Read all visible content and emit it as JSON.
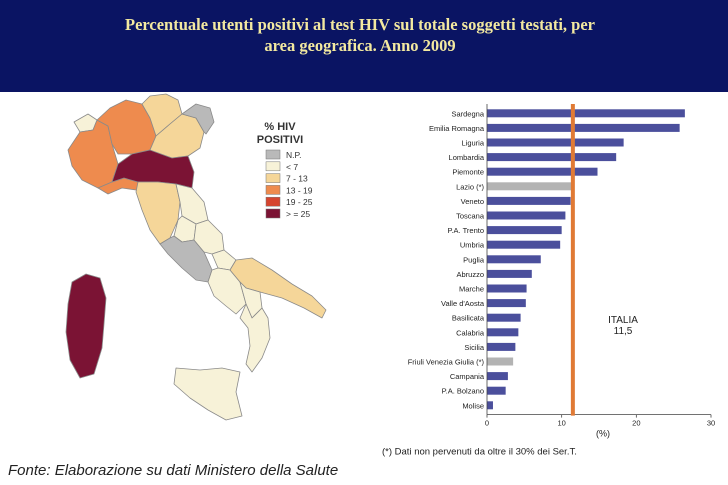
{
  "header": {
    "title_line1": "Percentuale utenti positivi al test HIV sul totale soggetti testati, per",
    "title_line2": "area geografica. Anno 2009"
  },
  "legend": {
    "title_line1": "% HIV",
    "title_line2": "POSITIVI",
    "items": [
      {
        "label": "N.P.",
        "color": "#b9b9b9"
      },
      {
        "label": "< 7",
        "color": "#f7f2d8"
      },
      {
        "label": "7 - 13",
        "color": "#f5d699"
      },
      {
        "label": "13 - 19",
        "color": "#ee8b4e"
      },
      {
        "label": "19 - 25",
        "color": "#d5452f"
      },
      {
        "label": "> = 25",
        "color": "#7b1334"
      }
    ]
  },
  "chart_data": {
    "type": "bar",
    "orientation": "horizontal",
    "categories": [
      "Sardegna",
      "Emilia Romagna",
      "Liguria",
      "Lombardia",
      "Piemonte",
      "Lazio (*)",
      "Veneto",
      "Toscana",
      "P.A. Trento",
      "Umbria",
      "Puglia",
      "Abruzzo",
      "Marche",
      "Valle d'Aosta",
      "Basilicata",
      "Calabria",
      "Sicilia",
      "Friuli Venezia Giulia (*)",
      "Campania",
      "P.A. Bolzano",
      "Molise"
    ],
    "values": [
      26.5,
      25.8,
      18.3,
      17.3,
      14.8,
      11.3,
      11.2,
      10.5,
      10.0,
      9.8,
      7.2,
      6.0,
      5.3,
      5.2,
      4.5,
      4.2,
      3.8,
      3.5,
      2.8,
      2.5,
      0.8
    ],
    "not_available": [
      false,
      false,
      false,
      false,
      false,
      true,
      false,
      false,
      false,
      false,
      false,
      false,
      false,
      false,
      false,
      false,
      false,
      true,
      false,
      false,
      false
    ],
    "xlim": [
      0,
      30
    ],
    "xticks": [
      "0",
      "10",
      "20",
      "30"
    ],
    "xlabel": "(%)",
    "reference_line": {
      "value": 11.5,
      "label_line1": "ITALIA",
      "label_line2": "11,5"
    },
    "footnote": "(*) Dati non pervenuti da oltre il 30% dei Ser.T.",
    "colors": {
      "bar": "#4b4f9c",
      "bar_na": "#b3b3b3",
      "reference": "#e07a35"
    }
  },
  "source": "Fonte: Elaborazione su dati Ministero  della Salute"
}
